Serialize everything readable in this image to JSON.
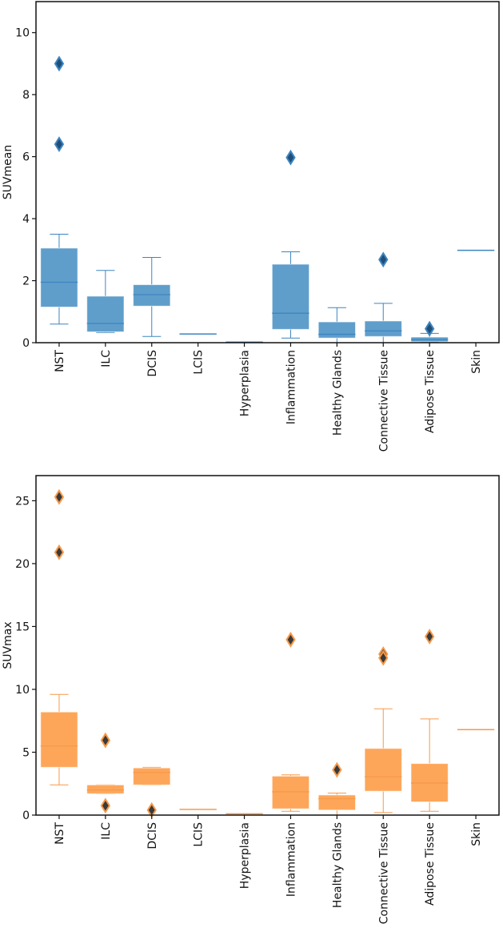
{
  "chart_data": [
    {
      "type": "box",
      "ylabel": "SUVmean",
      "ylim": [
        0,
        11
      ],
      "yticks": [
        0,
        2,
        4,
        6,
        8,
        10
      ],
      "color": "#5f9ecb",
      "edge_color": "#3d85c0",
      "outlier_color": "#1f4e79",
      "categories": [
        "NST",
        "ILC",
        "DCIS",
        "LCIS",
        "Hyperplasia",
        "Inflammation",
        "Healthy Glands",
        "Connective Tissue",
        "Adipose Tissue",
        "Skin"
      ],
      "boxes": [
        {
          "whislo": 0.6,
          "q1": 1.15,
          "med": 1.95,
          "q3": 3.05,
          "whishi": 3.5,
          "fliers": [
            9.0,
            6.4
          ]
        },
        {
          "whislo": 0.33,
          "q1": 0.35,
          "med": 0.62,
          "q3": 1.5,
          "whishi": 2.33,
          "fliers": []
        },
        {
          "whislo": 0.2,
          "q1": 1.18,
          "med": 1.55,
          "q3": 1.87,
          "whishi": 2.75,
          "fliers": []
        },
        {
          "whislo": 0.28,
          "q1": 0.28,
          "med": 0.28,
          "q3": 0.28,
          "whishi": 0.28,
          "fliers": []
        },
        {
          "whislo": 0.02,
          "q1": 0.02,
          "med": 0.02,
          "q3": 0.02,
          "whishi": 0.02,
          "fliers": []
        },
        {
          "whislo": 0.15,
          "q1": 0.43,
          "med": 0.95,
          "q3": 2.53,
          "whishi": 2.93,
          "fliers": [
            5.97
          ]
        },
        {
          "whislo": 0.0,
          "q1": 0.15,
          "med": 0.27,
          "q3": 0.67,
          "whishi": 1.13,
          "fliers": []
        },
        {
          "whislo": 0.0,
          "q1": 0.2,
          "med": 0.38,
          "q3": 0.7,
          "whishi": 1.27,
          "fliers": [
            2.68
          ]
        },
        {
          "whislo": 0.02,
          "q1": 0.03,
          "med": 0.1,
          "q3": 0.18,
          "whishi": 0.3,
          "fliers": [
            0.45
          ]
        },
        {
          "whislo": 2.98,
          "q1": 2.98,
          "med": 2.98,
          "q3": 2.98,
          "whishi": 2.98,
          "fliers": []
        }
      ]
    },
    {
      "type": "box",
      "ylabel": "SUVmax",
      "ylim": [
        0,
        27
      ],
      "yticks": [
        0,
        5,
        10,
        15,
        20,
        25
      ],
      "color": "#fda65a",
      "edge_color": "#f6994a",
      "outlier_color": "#3a3a3a",
      "categories": [
        "NST",
        "ILC",
        "DCIS",
        "LCIS",
        "Hyperplasia",
        "Inflammation",
        "Healthy Glands",
        "Connective Tissue",
        "Adipose Tissue",
        "Skin"
      ],
      "boxes": [
        {
          "whislo": 2.4,
          "q1": 3.8,
          "med": 5.5,
          "q3": 8.2,
          "whishi": 9.6,
          "fliers": [
            25.3,
            20.9
          ]
        },
        {
          "whislo": 1.7,
          "q1": 1.7,
          "med": 2.0,
          "q3": 2.4,
          "whishi": 2.4,
          "fliers": [
            5.95,
            0.75
          ]
        },
        {
          "whislo": 2.4,
          "q1": 2.4,
          "med": 3.4,
          "q3": 3.75,
          "whishi": 3.8,
          "fliers": [
            0.4
          ]
        },
        {
          "whislo": 0.45,
          "q1": 0.45,
          "med": 0.45,
          "q3": 0.45,
          "whishi": 0.45,
          "fliers": []
        },
        {
          "whislo": 0.1,
          "q1": 0.1,
          "med": 0.1,
          "q3": 0.1,
          "whishi": 0.1,
          "fliers": []
        },
        {
          "whislo": 0.3,
          "q1": 0.5,
          "med": 1.85,
          "q3": 3.1,
          "whishi": 3.2,
          "fliers": [
            13.95
          ]
        },
        {
          "whislo": 0.0,
          "q1": 0.4,
          "med": 1.3,
          "q3": 1.6,
          "whishi": 1.75,
          "fliers": [
            3.6
          ]
        },
        {
          "whislo": 0.2,
          "q1": 1.9,
          "med": 3.05,
          "q3": 5.3,
          "whishi": 8.45,
          "fliers": [
            12.8,
            12.5
          ]
        },
        {
          "whislo": 0.3,
          "q1": 1.05,
          "med": 2.55,
          "q3": 4.1,
          "whishi": 7.65,
          "fliers": [
            14.2
          ]
        },
        {
          "whislo": 6.8,
          "q1": 6.8,
          "med": 6.8,
          "q3": 6.8,
          "whishi": 6.8,
          "fliers": []
        }
      ]
    }
  ]
}
